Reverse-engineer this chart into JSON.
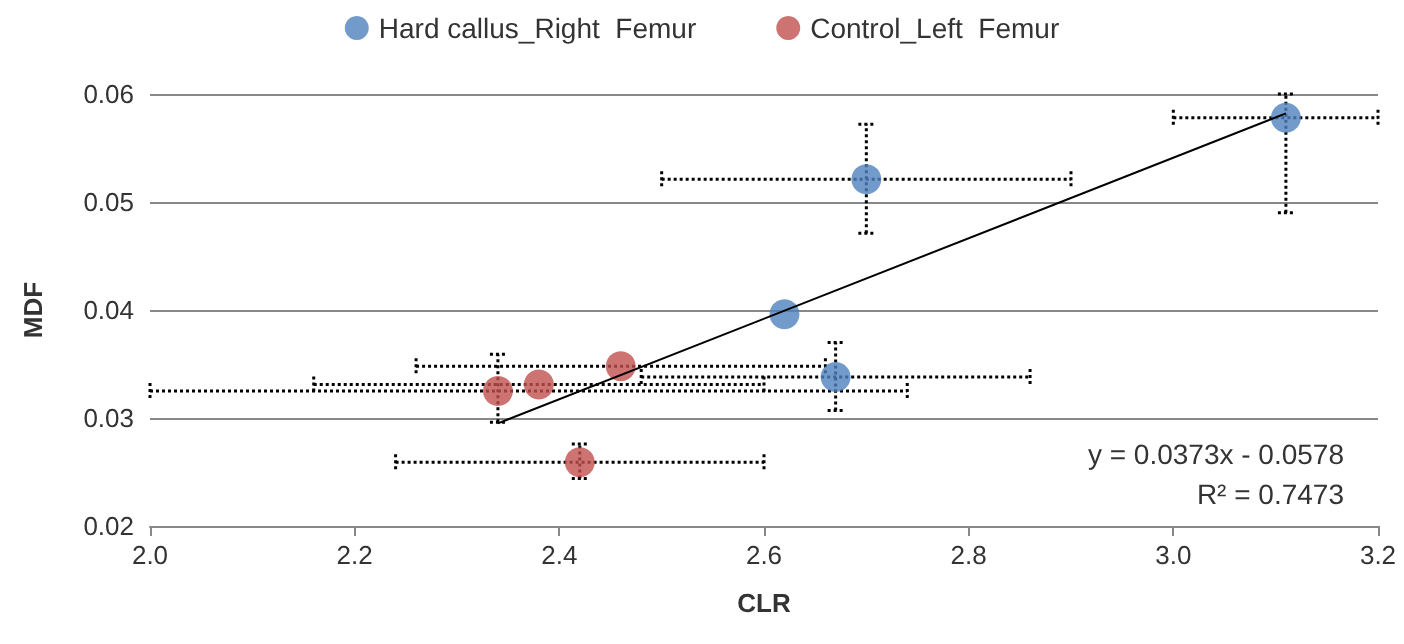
{
  "chart_data": {
    "type": "scatter",
    "xlabel": "CLR",
    "ylabel": "MDF",
    "xlim": [
      2.0,
      3.2
    ],
    "xticks": [
      {
        "value": 2.0,
        "label": "2.0"
      },
      2.2,
      2.4,
      2.6,
      2.8,
      {
        "value": 3.0,
        "label": "3.0"
      },
      3.2
    ],
    "ylim": [
      0.02,
      0.06
    ],
    "yticks": [
      0.02,
      0.03,
      0.04,
      0.05,
      0.06
    ],
    "grid": "y",
    "legend": "top",
    "marker": "circle",
    "series": [
      {
        "name": "Hard callus_Right  Femur",
        "color": "#4f81bd",
        "x": [
          3.11,
          2.7,
          2.62,
          2.67
        ],
        "values": [
          0.0578,
          0.0521,
          0.0396,
          0.0338
        ],
        "errors": [
          [
            0.049,
            0.06
          ],
          [
            0.0471,
            0.0572
          ],
          null,
          [
            0.0307,
            0.037
          ]
        ],
        "xerrors": [
          [
            3.0,
            3.2
          ],
          [
            2.5,
            2.9
          ],
          null,
          [
            2.48,
            2.86
          ]
        ]
      },
      {
        "name": "Control_Left  Femur",
        "color": "#c0504d",
        "x": [
          2.34,
          2.38,
          2.46,
          2.42
        ],
        "values": [
          0.0325,
          0.0331,
          0.0348,
          0.0259
        ],
        "errors": [
          [
            0.0296,
            0.0359
          ],
          null,
          null,
          [
            0.0244,
            0.0276
          ]
        ],
        "xerrors": [
          [
            2.0,
            2.74
          ],
          [
            2.16,
            2.6
          ],
          [
            2.26,
            2.66
          ],
          [
            2.24,
            2.6
          ]
        ]
      },
      {
        "type": "line",
        "color": "#000000",
        "x": [
          2.34,
          3.11
        ],
        "values": [
          0.0295,
          0.0582
        ],
        "marker": "none"
      }
    ],
    "annotations": [
      "y = 0.0373x - 0.0578",
      "R² = 0.7473"
    ]
  }
}
